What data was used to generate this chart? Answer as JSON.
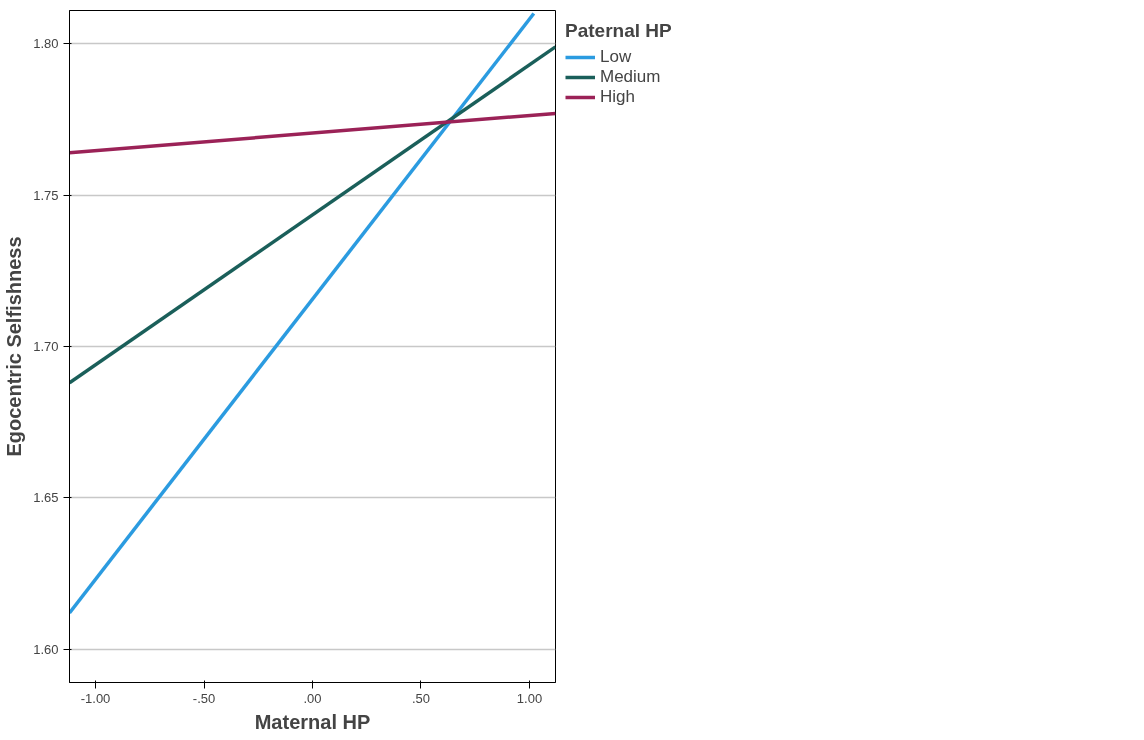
{
  "chart_data": {
    "type": "line",
    "xlabel": "Maternal HP",
    "ylabel": "Egocentric Selfishness",
    "legend_title": "Paternal HP",
    "xlim": [
      -1.12,
      1.12
    ],
    "ylim": [
      1.589,
      1.811
    ],
    "xticks": [
      {
        "value": -1,
        "label": "-1.00"
      },
      {
        "value": -0.5,
        "label": "-.50"
      },
      {
        "value": 0,
        "label": ".00"
      },
      {
        "value": 0.5,
        "label": ".50"
      },
      {
        "value": 1,
        "label": "1.00"
      }
    ],
    "yticks": [
      {
        "value": 1.6,
        "label": "1.60"
      },
      {
        "value": 1.65,
        "label": "1.65"
      },
      {
        "value": 1.7,
        "label": "1.70"
      },
      {
        "value": 1.75,
        "label": "1.75"
      },
      {
        "value": 1.8,
        "label": "1.80"
      }
    ],
    "grid": "y",
    "legend": "top right",
    "marker": "none",
    "line_style": "solid",
    "series": [
      {
        "name": "Low",
        "color": "#2b9be0",
        "x": [
          -1.12,
          1.02
        ],
        "values": [
          1.612,
          1.81
        ]
      },
      {
        "name": "Medium",
        "color": "#1a5f5a",
        "x": [
          -1.12,
          1.12
        ],
        "values": [
          1.688,
          1.799
        ]
      },
      {
        "name": "High",
        "color": "#9b2257",
        "x": [
          -1.12,
          1.12
        ],
        "values": [
          1.764,
          1.777
        ]
      }
    ]
  }
}
